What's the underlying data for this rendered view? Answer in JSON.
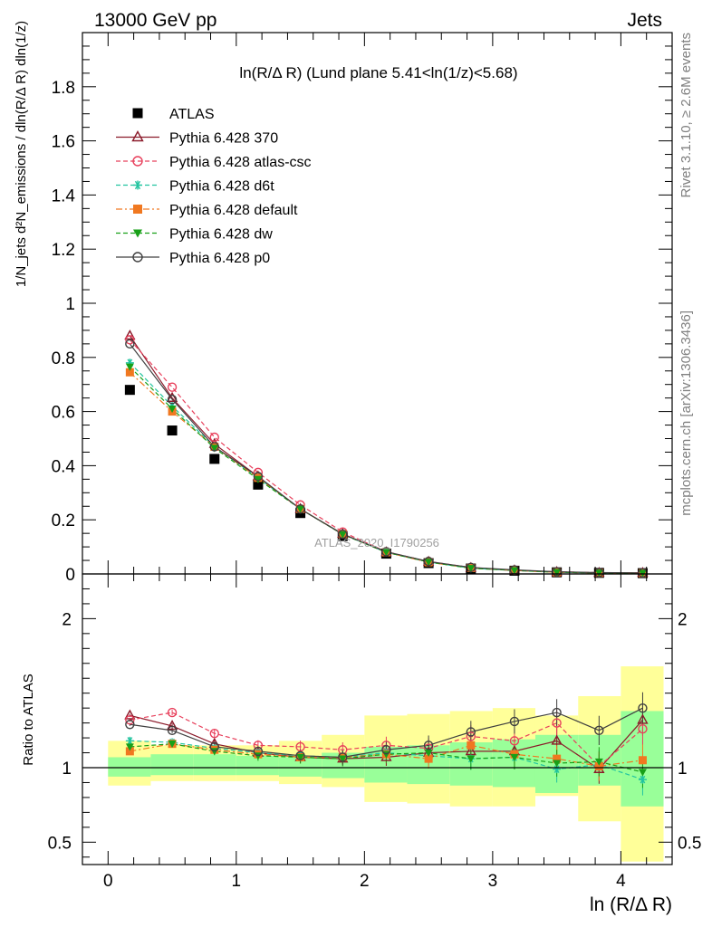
{
  "header": {
    "left": "13000 GeV pp",
    "right": "Jets"
  },
  "side_labels": {
    "rivet": "Rivet 3.1.10, ≥ 2.6M events",
    "mcplots": "mcplots.cern.ch [arXiv:1306.3436]"
  },
  "watermark": "ATLAS_2020_I1790256",
  "chart_data": [
    {
      "type": "scatter",
      "title": "ln(R/Δ R) (Lund plane 5.41<ln(1/z)<5.68)",
      "ylabel": "1/N_jets d²N_emissions / dln(R/Δ R) dln(1/z)",
      "xlim": [
        -0.2,
        4.4
      ],
      "ylim": [
        0,
        2.0
      ],
      "yticks": [
        0.2,
        0.4,
        0.6,
        0.8,
        1.0,
        1.2,
        1.4,
        1.6,
        1.8
      ],
      "ytick_labels": [
        "0.2",
        "0.4",
        "0.6",
        "0.8",
        "1",
        "1.2",
        "1.4",
        "1.6",
        "1.8"
      ],
      "x": [
        0.17,
        0.5,
        0.83,
        1.17,
        1.5,
        1.83,
        2.17,
        2.5,
        2.83,
        3.17,
        3.5,
        3.83,
        4.17
      ],
      "series": [
        {
          "name": "ATLAS",
          "color": "#000000",
          "marker": "square-filled",
          "line": "none",
          "values": [
            0.68,
            0.53,
            0.425,
            0.33,
            0.225,
            0.14,
            0.075,
            0.04,
            0.02,
            0.012,
            0.006,
            0.004,
            0.003
          ]
        },
        {
          "name": "Pythia 6.428 370",
          "color": "#8b1a2a",
          "marker": "triangle-open",
          "line": "solid",
          "values": [
            0.88,
            0.65,
            0.48,
            0.36,
            0.24,
            0.148,
            0.08,
            0.045,
            0.022,
            0.013,
            0.007,
            0.004,
            0.004
          ]
        },
        {
          "name": "Pythia 6.428 atlas-csc",
          "color": "#e8405c",
          "marker": "circle-open",
          "line": "dashed",
          "values": [
            0.865,
            0.69,
            0.505,
            0.375,
            0.255,
            0.155,
            0.082,
            0.046,
            0.024,
            0.014,
            0.008,
            0.005,
            0.004
          ]
        },
        {
          "name": "Pythia 6.428 d6t",
          "color": "#22c4a0",
          "marker": "asterisk",
          "line": "dashed",
          "values": [
            0.78,
            0.62,
            0.47,
            0.355,
            0.24,
            0.147,
            0.08,
            0.044,
            0.021,
            0.013,
            0.006,
            0.004,
            0.003
          ]
        },
        {
          "name": "Pythia 6.428 default",
          "color": "#f07820",
          "marker": "square-filled",
          "line": "dashdot",
          "values": [
            0.745,
            0.6,
            0.47,
            0.355,
            0.24,
            0.147,
            0.08,
            0.043,
            0.022,
            0.013,
            0.006,
            0.004,
            0.003
          ]
        },
        {
          "name": "Pythia 6.428 dw",
          "color": "#18a018",
          "marker": "triangle-down-filled",
          "line": "dashed",
          "values": [
            0.765,
            0.61,
            0.465,
            0.35,
            0.24,
            0.146,
            0.08,
            0.044,
            0.021,
            0.013,
            0.006,
            0.004,
            0.003
          ]
        },
        {
          "name": "Pythia 6.428 p0",
          "color": "#404040",
          "marker": "circle-open",
          "line": "solid",
          "values": [
            0.85,
            0.645,
            0.47,
            0.36,
            0.24,
            0.147,
            0.082,
            0.046,
            0.024,
            0.015,
            0.008,
            0.005,
            0.004
          ]
        }
      ]
    },
    {
      "type": "scatter",
      "ylabel": "Ratio to ATLAS",
      "xlabel": "ln (R/Δ R)",
      "xlim": [
        -0.2,
        4.4
      ],
      "ylim": [
        0.35,
        2.3
      ],
      "yticks": [
        0.5,
        1,
        2
      ],
      "ytick_labels": [
        "0.5",
        "1",
        "2"
      ],
      "xticks": [
        0,
        1,
        2,
        3,
        4
      ],
      "xtick_labels": [
        "0",
        "1",
        "2",
        "3",
        "4"
      ],
      "bins": [
        0,
        0.333,
        0.667,
        1.0,
        1.333,
        1.667,
        2.0,
        2.333,
        2.667,
        3.0,
        3.333,
        3.667,
        4.0,
        4.333
      ],
      "band_inner": [
        [
          0.94,
          1.07
        ],
        [
          0.95,
          1.09
        ],
        [
          0.95,
          1.09
        ],
        [
          0.95,
          1.08
        ],
        [
          0.94,
          1.07
        ],
        [
          0.93,
          1.1
        ],
        [
          0.9,
          1.14
        ],
        [
          0.89,
          1.15
        ],
        [
          0.88,
          1.17
        ],
        [
          0.87,
          1.19
        ],
        [
          0.83,
          1.22
        ],
        [
          0.88,
          1.22
        ],
        [
          0.74,
          1.38
        ]
      ],
      "band_outer": [
        [
          0.88,
          1.18
        ],
        [
          0.91,
          1.15
        ],
        [
          0.91,
          1.15
        ],
        [
          0.91,
          1.15
        ],
        [
          0.89,
          1.18
        ],
        [
          0.87,
          1.22
        ],
        [
          0.77,
          1.35
        ],
        [
          0.76,
          1.36
        ],
        [
          0.74,
          1.38
        ],
        [
          0.74,
          1.4
        ],
        [
          0.81,
          1.35
        ],
        [
          0.64,
          1.48
        ],
        [
          0.37,
          1.68
        ]
      ],
      "x": [
        0.17,
        0.5,
        0.83,
        1.17,
        1.5,
        1.83,
        2.17,
        2.5,
        2.83,
        3.17,
        3.5,
        3.83,
        4.17
      ],
      "series": [
        {
          "name": "Pythia 6.428 370",
          "color": "#8b1a2a",
          "marker": "triangle-open",
          "line": "solid",
          "values": [
            1.35,
            1.28,
            1.16,
            1.1,
            1.07,
            1.06,
            1.07,
            1.1,
            1.11,
            1.11,
            1.18,
            0.99,
            1.32
          ]
        },
        {
          "name": "Pythia 6.428 atlas-csc",
          "color": "#e8405c",
          "marker": "circle-open",
          "line": "dashed",
          "values": [
            1.32,
            1.37,
            1.23,
            1.15,
            1.14,
            1.12,
            1.15,
            1.13,
            1.21,
            1.18,
            1.3,
            1.01,
            1.26
          ]
        },
        {
          "name": "Pythia 6.428 d6t",
          "color": "#22c4a0",
          "marker": "asterisk",
          "line": "dashed",
          "values": [
            1.18,
            1.17,
            1.13,
            1.1,
            1.08,
            1.07,
            1.1,
            1.08,
            1.06,
            1.07,
            0.99,
            1.02,
            0.92
          ]
        },
        {
          "name": "Pythia 6.428 default",
          "color": "#f07820",
          "marker": "square-filled",
          "line": "dashdot",
          "values": [
            1.11,
            1.16,
            1.12,
            1.09,
            1.07,
            1.07,
            1.09,
            1.06,
            1.15,
            1.09,
            1.06,
            1.01,
            1.05
          ]
        },
        {
          "name": "Pythia 6.428 dw",
          "color": "#18a018",
          "marker": "triangle-down-filled",
          "line": "dashed",
          "values": [
            1.14,
            1.16,
            1.11,
            1.08,
            1.07,
            1.06,
            1.09,
            1.1,
            1.06,
            1.07,
            1.03,
            1.04,
            0.97
          ]
        },
        {
          "name": "Pythia 6.428 p0",
          "color": "#404040",
          "marker": "circle-open",
          "line": "solid",
          "values": [
            1.29,
            1.25,
            1.14,
            1.11,
            1.08,
            1.07,
            1.12,
            1.15,
            1.24,
            1.31,
            1.37,
            1.25,
            1.4
          ]
        }
      ]
    }
  ]
}
